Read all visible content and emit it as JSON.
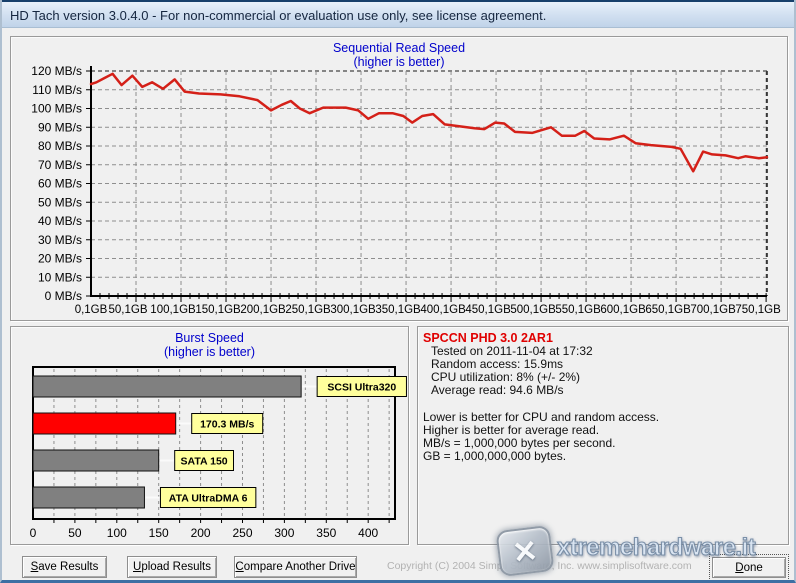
{
  "window": {
    "title": "HD Tach version 3.0.4.0  - For non-commercial or evaluation use only, see license agreement."
  },
  "chart_data": [
    {
      "type": "line",
      "title": "Sequential Read Speed",
      "subtitle": "(higher is better)",
      "line_color": "#d42018",
      "grid": "dashed",
      "ylim": [
        0,
        120
      ],
      "y_ticks": [
        "0 MB/s",
        "10 MB/s",
        "20 MB/s",
        "30 MB/s",
        "40 MB/s",
        "50 MB/s",
        "60 MB/s",
        "70 MB/s",
        "80 MB/s",
        "90 MB/s",
        "100 MB/s",
        "110 MB/s",
        "120 MB/s"
      ],
      "xlim": [
        0,
        751
      ],
      "x_tick_values": [
        0,
        50,
        100,
        150,
        200,
        250,
        300,
        350,
        400,
        450,
        500,
        550,
        600,
        650,
        700,
        750
      ],
      "x_tick_labels": [
        "0,1GB",
        "50,1GB",
        "100,1GB",
        "150,1GB",
        "200,1GB",
        "250,1GB",
        "300,1GB",
        "350,1GB",
        "400,1GB",
        "450,1GB",
        "500,1GB",
        "550,1GB",
        "600,1GB",
        "650,1GB",
        "700,1GB",
        "750,1GB"
      ],
      "series": [
        {
          "name": "sequential-read-speed",
          "points_gb_mbps": [
            [
              0,
              113
            ],
            [
              6,
              114
            ],
            [
              14,
              116
            ],
            [
              24,
              118.5
            ],
            [
              34,
              112.5
            ],
            [
              46,
              117.5
            ],
            [
              57,
              111.5
            ],
            [
              68,
              114
            ],
            [
              80,
              110.5
            ],
            [
              93,
              115.5
            ],
            [
              104,
              109
            ],
            [
              120,
              108
            ],
            [
              144,
              107.5
            ],
            [
              165,
              106.5
            ],
            [
              185,
              104.5
            ],
            [
              200,
              99
            ],
            [
              212,
              102
            ],
            [
              222,
              104
            ],
            [
              232,
              100
            ],
            [
              243,
              97.5
            ],
            [
              258,
              100.5
            ],
            [
              283,
              100.5
            ],
            [
              297,
              99
            ],
            [
              308,
              94.5
            ],
            [
              320,
              97.5
            ],
            [
              335,
              97.5
            ],
            [
              347,
              96
            ],
            [
              357,
              92.5
            ],
            [
              368,
              96
            ],
            [
              380,
              97
            ],
            [
              393,
              91.5
            ],
            [
              409,
              90.5
            ],
            [
              426,
              89.5
            ],
            [
              437,
              89
            ],
            [
              449,
              92.5
            ],
            [
              459,
              92
            ],
            [
              471,
              87.5
            ],
            [
              490,
              87
            ],
            [
              511,
              90
            ],
            [
              523,
              85.5
            ],
            [
              538,
              85.5
            ],
            [
              548,
              88
            ],
            [
              559,
              84
            ],
            [
              576,
              83.5
            ],
            [
              592,
              85.5
            ],
            [
              605,
              81.5
            ],
            [
              622,
              80.5
            ],
            [
              645,
              79.5
            ],
            [
              655,
              78.5
            ],
            [
              669,
              66.5
            ],
            [
              680,
              77
            ],
            [
              690,
              75.5
            ],
            [
              705,
              75
            ],
            [
              719,
              73.5
            ],
            [
              727,
              74.5
            ],
            [
              742,
              73.5
            ],
            [
              751,
              74
            ]
          ]
        }
      ]
    },
    {
      "type": "bar",
      "orientation": "horizontal",
      "title": "Burst Speed",
      "subtitle": "(higher is better)",
      "xlim": [
        0,
        432
      ],
      "x_ticks": [
        0,
        50,
        100,
        150,
        200,
        250,
        300,
        350,
        400
      ],
      "grid_step": 25,
      "label_box_color": "#ffff9c",
      "bars": [
        {
          "label": "SCSI Ultra320",
          "value": 320,
          "color": "#808080"
        },
        {
          "label": "170.3 MB/s",
          "value": 170.3,
          "color": "#ff0000"
        },
        {
          "label": "SATA 150",
          "value": 150,
          "color": "#808080"
        },
        {
          "label": "ATA UltraDMA 6",
          "value": 133,
          "color": "#808080"
        }
      ]
    }
  ],
  "info": {
    "drive_name": "SPCCN PHD 3.0 2AR1",
    "details": [
      "Tested on 2011-11-04 at 17:32",
      "Random access: 15.9ms",
      "CPU utilization: 8% (+/- 2%)",
      "Average read: 94.6 MB/s"
    ],
    "notes": [
      "Lower is better for CPU and random access.",
      "Higher is better for average read.",
      "MB/s = 1,000,000 bytes per second.",
      "GB = 1,000,000,000 bytes."
    ]
  },
  "buttons": {
    "save": "Save Results",
    "upload": "Upload Results",
    "compare": "Compare Another Drive",
    "done": "Done"
  },
  "footer": {
    "copyright": "Copyright (C) 2004 Simpli Software, Inc.  www.simplisoftware.com"
  },
  "watermark": {
    "text": "xtremehardware.it",
    "x_glyph": "✕"
  },
  "colors": {
    "title_blue": "#0000cc",
    "line_red": "#d42018",
    "drive_name_red": "#e00000",
    "bar_gray": "#808080",
    "bar_red": "#ff0000",
    "label_yellow": "#ffff9c"
  }
}
